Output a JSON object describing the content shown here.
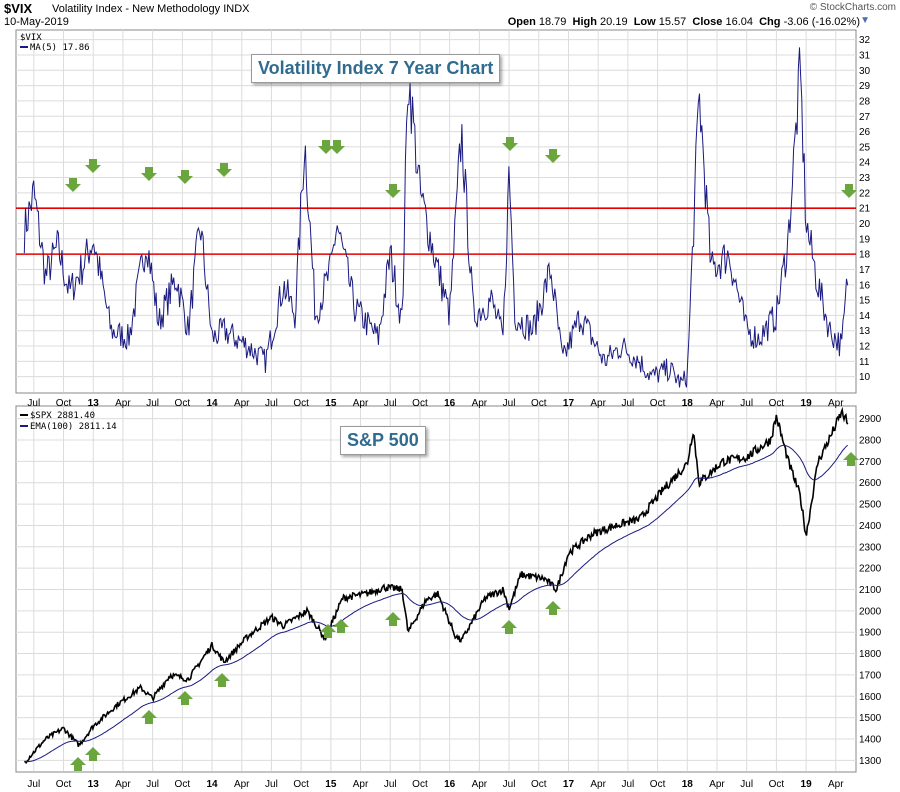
{
  "header": {
    "symbol": "$VIX",
    "description": "Volatility Index - New Methodology  INDX",
    "date": "10-May-2019",
    "open_label": "Open",
    "open": "18.79",
    "high_label": "High",
    "high": "20.19",
    "low_label": "Low",
    "low": "15.57",
    "close_label": "Close",
    "close": "16.04",
    "chg_label": "Chg",
    "chg": "-3.06 (-16.02%)",
    "brand": "© StockCharts.com"
  },
  "colors": {
    "vix_line": "#1a1a80",
    "spx_line": "#000000",
    "ema_line": "#1a1a80",
    "ref_line": "#e60000",
    "arrow": "#6ba53d",
    "grid": "#dcdcdc"
  },
  "icons": {
    "down_arrow": "green-down-arrow-icon",
    "up_arrow": "green-up-arrow-icon"
  },
  "chart_data": [
    {
      "type": "line",
      "title": "Volatility Index 7 Year Chart",
      "legend": {
        "symbol": "$VIX",
        "ma": "MA(5) 17.86"
      },
      "ylim": [
        9,
        32.5
      ],
      "y_ticks": [
        10,
        11,
        12,
        13,
        14,
        15,
        16,
        17,
        18,
        19,
        20,
        21,
        22,
        23,
        24,
        25,
        26,
        27,
        28,
        29,
        30,
        31,
        32
      ],
      "x_labels": [
        "Jul",
        "Oct",
        "13",
        "Apr",
        "Jul",
        "Oct",
        "14",
        "Apr",
        "Jul",
        "Oct",
        "15",
        "Apr",
        "Jul",
        "Oct",
        "16",
        "Apr",
        "Jul",
        "Oct",
        "17",
        "Apr",
        "Jul",
        "Oct",
        "18",
        "Apr",
        "Jul",
        "Oct",
        "19",
        "Apr"
      ],
      "reference_lines": [
        21,
        18
      ],
      "down_arrow_dates": [
        "Oct 2012",
        "Dec 2012",
        "Jun 2013",
        "Sep 2013",
        "Dec 2013",
        "Oct 2014",
        "Oct 2014",
        "Jun 2015",
        "Jun 2016",
        "Oct 2016",
        "May 2019"
      ],
      "series_anchors": {
        "t": [
          2012.42,
          2012.5,
          2012.6,
          2012.7,
          2012.8,
          2012.9,
          2013.0,
          2013.15,
          2013.3,
          2013.45,
          2013.55,
          2013.7,
          2013.8,
          2013.9,
          2014.0,
          2014.1,
          2014.3,
          2014.45,
          2014.6,
          2014.7,
          2014.78,
          2014.87,
          2015.0,
          2015.05,
          2015.2,
          2015.4,
          2015.5,
          2015.6,
          2015.65,
          2015.75,
          2015.9,
          2016.0,
          2016.1,
          2016.2,
          2016.35,
          2016.45,
          2016.5,
          2016.55,
          2016.7,
          2016.85,
          2016.95,
          2017.1,
          2017.3,
          2017.45,
          2017.6,
          2017.7,
          2017.85,
          2017.95,
          2018.0,
          2018.1,
          2018.2,
          2018.35,
          2018.5,
          2018.6,
          2018.75,
          2018.85,
          2018.95,
          2019.0,
          2019.1,
          2019.2,
          2019.3,
          2019.35
        ],
        "vix": [
          19.5,
          22,
          16.5,
          18.5,
          15.5,
          17,
          19,
          13,
          12.5,
          19,
          13.5,
          16.5,
          13,
          20,
          12.5,
          13,
          12,
          11,
          16,
          14,
          25.5,
          14,
          17,
          20,
          14.5,
          12.5,
          18,
          13.5,
          30,
          22,
          17,
          14,
          26,
          14,
          15,
          12.5,
          23.5,
          14,
          13,
          17,
          11,
          14,
          11,
          12,
          11,
          10,
          10.5,
          9.5,
          10,
          28.5,
          17,
          18,
          13,
          12.5,
          14,
          19,
          30,
          20,
          16,
          13,
          12,
          16.5
        ]
      }
    },
    {
      "type": "line",
      "title": "S&P 500",
      "legend": {
        "symbol": "$SPX 2881.40",
        "ema": "EMA(100) 2811.14"
      },
      "ylim": [
        1250,
        2950
      ],
      "y_ticks": [
        1300,
        1400,
        1500,
        1600,
        1700,
        1800,
        1900,
        2000,
        2100,
        2200,
        2300,
        2400,
        2500,
        2600,
        2700,
        2800,
        2900
      ],
      "x_labels": [
        "Jul",
        "Oct",
        "13",
        "Apr",
        "Jul",
        "Oct",
        "14",
        "Apr",
        "Jul",
        "Oct",
        "15",
        "Apr",
        "Jul",
        "Oct",
        "16",
        "Apr",
        "Jul",
        "Oct",
        "17",
        "Apr",
        "Jul",
        "Oct",
        "18",
        "Apr",
        "Jul",
        "Oct",
        "19",
        "Apr"
      ],
      "up_arrow_dates": [
        "Nov 2012",
        "Dec 2012",
        "Jun 2013",
        "Sep 2013",
        "Dec 2013",
        "Oct 2014",
        "Oct 2014",
        "Jun 2015",
        "Jun 2016",
        "Oct 2016",
        "May 2019"
      ],
      "series_anchors": {
        "t": [
          2012.42,
          2012.6,
          2012.75,
          2012.88,
          2013.0,
          2013.2,
          2013.4,
          2013.5,
          2013.65,
          2013.8,
          2014.0,
          2014.1,
          2014.3,
          2014.5,
          2014.6,
          2014.8,
          2014.95,
          2015.1,
          2015.3,
          2015.45,
          2015.6,
          2015.65,
          2015.8,
          2015.9,
          2016.05,
          2016.1,
          2016.3,
          2016.45,
          2016.5,
          2016.6,
          2016.8,
          2016.9,
          2017.0,
          2017.2,
          2017.4,
          2017.6,
          2017.8,
          2018.0,
          2018.05,
          2018.1,
          2018.3,
          2018.5,
          2018.7,
          2018.75,
          2018.85,
          2018.95,
          2019.0,
          2019.1,
          2019.2,
          2019.3,
          2019.35
        ],
        "spx": [
          1290,
          1400,
          1450,
          1370,
          1460,
          1560,
          1640,
          1590,
          1700,
          1680,
          1840,
          1760,
          1880,
          1970,
          1930,
          2000,
          1870,
          2060,
          2080,
          2110,
          2100,
          1900,
          2050,
          2080,
          1880,
          1860,
          2060,
          2100,
          2010,
          2170,
          2150,
          2100,
          2270,
          2360,
          2400,
          2430,
          2570,
          2690,
          2850,
          2600,
          2700,
          2720,
          2800,
          2910,
          2700,
          2540,
          2350,
          2700,
          2810,
          2930,
          2880
        ]
      }
    }
  ]
}
